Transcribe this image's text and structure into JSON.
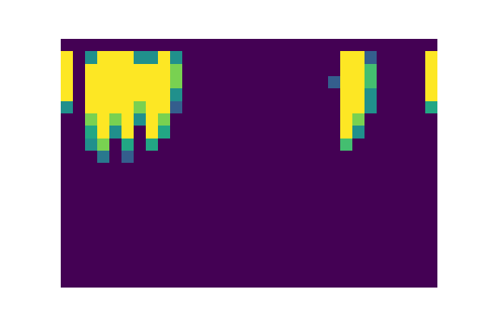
{
  "chart_data": {
    "type": "heatmap",
    "color": "viridis",
    "tick_labels": false,
    "value_range": [
      0,
      1
    ],
    "cells": [
      [
        0,
        0,
        0,
        0,
        0,
        0,
        0,
        0,
        0,
        0,
        0,
        0,
        0,
        0,
        0,
        0,
        0,
        0,
        0,
        0,
        0,
        0,
        0,
        0,
        0,
        0,
        0,
        0,
        0,
        0,
        0
      ],
      [
        1,
        0,
        0.5,
        1,
        1,
        1,
        0.5,
        0.5,
        1,
        0.5,
        0,
        0,
        0,
        0,
        0,
        0,
        0,
        0,
        0,
        0,
        0,
        0,
        0,
        1,
        1,
        0.3,
        0,
        0,
        0,
        0,
        1
      ],
      [
        1,
        0,
        1,
        1,
        1,
        1,
        1,
        1,
        1,
        0.8,
        0,
        0,
        0,
        0,
        0,
        0,
        0,
        0,
        0,
        0,
        0,
        0,
        0,
        1,
        1,
        0.7,
        0,
        0,
        0,
        0,
        1
      ],
      [
        1,
        0,
        1,
        1,
        1,
        1,
        1,
        1,
        1,
        0.8,
        0,
        0,
        0,
        0,
        0,
        0,
        0,
        0,
        0,
        0,
        0,
        0,
        0.3,
        1,
        1,
        0.7,
        0,
        0,
        0,
        0,
        1
      ],
      [
        1,
        0,
        1,
        1,
        1,
        1,
        1,
        1,
        1,
        0.5,
        0,
        0,
        0,
        0,
        0,
        0,
        0,
        0,
        0,
        0,
        0,
        0,
        0,
        1,
        1,
        0.5,
        0,
        0,
        0,
        0,
        1
      ],
      [
        0.5,
        0,
        1,
        1,
        1,
        1,
        0.8,
        1,
        1,
        0.3,
        0,
        0,
        0,
        0,
        0,
        0,
        0,
        0,
        0,
        0,
        0,
        0,
        0,
        1,
        1,
        0.5,
        0,
        0,
        0,
        0,
        0.6
      ],
      [
        0,
        0,
        0.8,
        1,
        0.8,
        1,
        0.5,
        1,
        0.8,
        0,
        0,
        0,
        0,
        0,
        0,
        0,
        0,
        0,
        0,
        0,
        0,
        0,
        0,
        1,
        0.8,
        0,
        0,
        0,
        0,
        0,
        0
      ],
      [
        0,
        0,
        0.6,
        1,
        0.5,
        1,
        0,
        1,
        0.6,
        0,
        0,
        0,
        0,
        0,
        0,
        0,
        0,
        0,
        0,
        0,
        0,
        0,
        0,
        1,
        0.5,
        0,
        0,
        0,
        0,
        0,
        0
      ],
      [
        0,
        0,
        0.5,
        0.8,
        0,
        0.6,
        0,
        0.6,
        0,
        0,
        0,
        0,
        0,
        0,
        0,
        0,
        0,
        0,
        0,
        0,
        0,
        0,
        0,
        0.7,
        0,
        0,
        0,
        0,
        0,
        0,
        0
      ],
      [
        0,
        0,
        0,
        0.4,
        0,
        0.3,
        0,
        0,
        0,
        0,
        0,
        0,
        0,
        0,
        0,
        0,
        0,
        0,
        0,
        0,
        0,
        0,
        0,
        0,
        0,
        0,
        0,
        0,
        0,
        0,
        0
      ],
      [
        0,
        0,
        0,
        0,
        0,
        0,
        0,
        0,
        0,
        0,
        0,
        0,
        0,
        0,
        0,
        0,
        0,
        0,
        0,
        0,
        0,
        0,
        0,
        0,
        0,
        0,
        0,
        0,
        0,
        0,
        0
      ],
      [
        0,
        0,
        0,
        0,
        0,
        0,
        0,
        0,
        0,
        0,
        0,
        0,
        0,
        0,
        0,
        0,
        0,
        0,
        0,
        0,
        0,
        0,
        0,
        0,
        0,
        0,
        0,
        0,
        0,
        0,
        0
      ],
      [
        0,
        0,
        0,
        0,
        0,
        0,
        0,
        0,
        0,
        0,
        0,
        0,
        0,
        0,
        0,
        0,
        0,
        0,
        0,
        0,
        0,
        0,
        0,
        0,
        0,
        0,
        0,
        0,
        0,
        0,
        0
      ],
      [
        0,
        0,
        0,
        0,
        0,
        0,
        0,
        0,
        0,
        0,
        0,
        0,
        0,
        0,
        0,
        0,
        0,
        0,
        0,
        0,
        0,
        0,
        0,
        0,
        0,
        0,
        0,
        0,
        0,
        0,
        0
      ],
      [
        0,
        0,
        0,
        0,
        0,
        0,
        0,
        0,
        0,
        0,
        0,
        0,
        0,
        0,
        0,
        0,
        0,
        0,
        0,
        0,
        0,
        0,
        0,
        0,
        0,
        0,
        0,
        0,
        0,
        0,
        0
      ],
      [
        0,
        0,
        0,
        0,
        0,
        0,
        0,
        0,
        0,
        0,
        0,
        0,
        0,
        0,
        0,
        0,
        0,
        0,
        0,
        0,
        0,
        0,
        0,
        0,
        0,
        0,
        0,
        0,
        0,
        0,
        0
      ],
      [
        0,
        0,
        0,
        0,
        0,
        0,
        0,
        0,
        0,
        0,
        0,
        0,
        0,
        0,
        0,
        0,
        0,
        0,
        0,
        0,
        0,
        0,
        0,
        0,
        0,
        0,
        0,
        0,
        0,
        0,
        0
      ],
      [
        0,
        0,
        0,
        0,
        0,
        0,
        0,
        0,
        0,
        0,
        0,
        0,
        0,
        0,
        0,
        0,
        0,
        0,
        0,
        0,
        0,
        0,
        0,
        0,
        0,
        0,
        0,
        0,
        0,
        0,
        0
      ],
      [
        0,
        0,
        0,
        0,
        0,
        0,
        0,
        0,
        0,
        0,
        0,
        0,
        0,
        0,
        0,
        0,
        0,
        0,
        0,
        0,
        0,
        0,
        0,
        0,
        0,
        0,
        0,
        0,
        0,
        0,
        0
      ],
      [
        0,
        0,
        0,
        0,
        0,
        0,
        0,
        0,
        0,
        0,
        0,
        0,
        0,
        0,
        0,
        0,
        0,
        0,
        0,
        0,
        0,
        0,
        0,
        0,
        0,
        0,
        0,
        0,
        0,
        0,
        0
      ]
    ]
  }
}
